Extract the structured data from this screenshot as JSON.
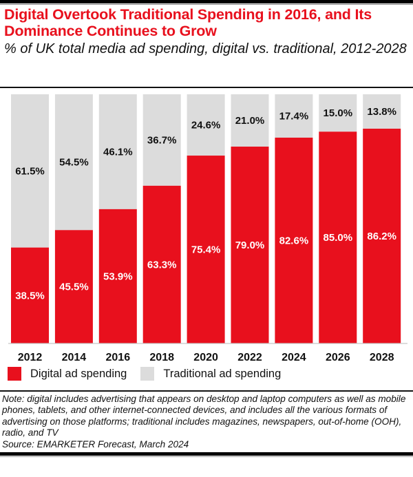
{
  "header": {
    "title": "Digital Overtook Traditional Spending in 2016, and Its Dominance Continues to Grow",
    "subtitle": "% of UK total media ad spending, digital vs. traditional, 2012-2028"
  },
  "colors": {
    "digital": "#e8101d",
    "traditional": "#dcdcdc",
    "title": "#e8101d"
  },
  "chart_data": {
    "type": "bar",
    "stacked": true,
    "title": "Digital Overtook Traditional Spending in 2016, and Its Dominance Continues to Grow",
    "subtitle": "% of UK total media ad spending, digital vs. traditional, 2012-2028",
    "xlabel": "",
    "ylabel": "",
    "ylim": [
      0,
      100
    ],
    "grid": false,
    "legend_position": "bottom-left",
    "categories": [
      "2012",
      "2014",
      "2016",
      "2018",
      "2020",
      "2022",
      "2024",
      "2026",
      "2028"
    ],
    "series": [
      {
        "name": "Digital ad spending",
        "color": "#e8101d",
        "values": [
          38.5,
          45.5,
          53.9,
          63.3,
          75.4,
          79.0,
          82.6,
          85.0,
          86.2
        ],
        "labels": [
          "38.5%",
          "45.5%",
          "53.9%",
          "63.3%",
          "75.4%",
          "79.0%",
          "82.6%",
          "85.0%",
          "86.2%"
        ]
      },
      {
        "name": "Traditional ad spending",
        "color": "#dcdcdc",
        "values": [
          61.5,
          54.5,
          46.1,
          36.7,
          24.6,
          21.0,
          17.4,
          15.0,
          13.8
        ],
        "labels": [
          "61.5%",
          "54.5%",
          "46.1%",
          "36.7%",
          "24.6%",
          "21.0%",
          "17.4%",
          "15.0%",
          "13.8%"
        ]
      }
    ]
  },
  "legend": {
    "items": [
      {
        "label": "Digital ad spending",
        "color": "#e8101d"
      },
      {
        "label": "Traditional ad spending",
        "color": "#dcdcdc"
      }
    ]
  },
  "footer": {
    "note": "Note: digital includes advertising that appears on desktop and laptop computers as well as mobile phones, tablets, and other internet-connected devices, and includes all the various formats of advertising on those platforms; traditional includes magazines, newspapers, out-of-home (OOH), radio, and TV",
    "source": "Source: EMARKETER Forecast, March 2024"
  }
}
